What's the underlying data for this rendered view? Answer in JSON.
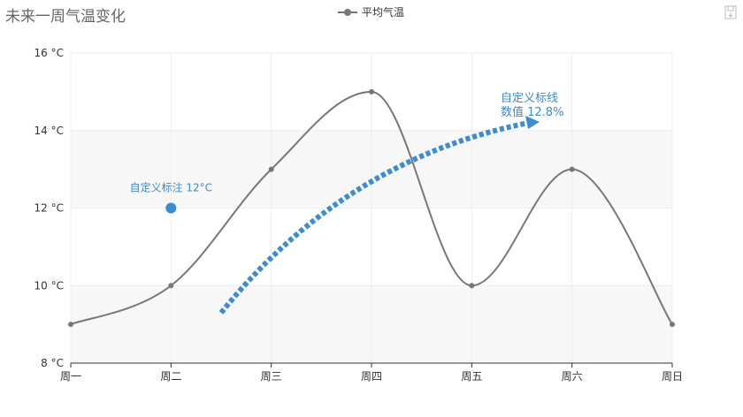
{
  "chart_data": {
    "type": "line",
    "title": "未来一周气温变化",
    "categories": [
      "周一",
      "周二",
      "周三",
      "周四",
      "周五",
      "周六",
      "周日"
    ],
    "series": [
      {
        "name": "平均气温",
        "values": [
          9,
          10,
          13,
          15,
          10,
          13,
          9
        ],
        "color": "#777777",
        "smooth": true
      }
    ],
    "ylim": [
      8,
      16
    ],
    "yticks": [
      8,
      10,
      12,
      14,
      16
    ],
    "yunit": "°C",
    "ytick_labels": [
      "8 °C",
      "10 °C",
      "12 °C",
      "14 °C",
      "16 °C"
    ],
    "legend_position": "top-center",
    "grid": true,
    "annotations": [
      {
        "type": "point",
        "x": "周二",
        "y": 12,
        "label": "自定义标注 12°C",
        "color": "#3d8bd1"
      },
      {
        "type": "arrow-line",
        "label_lines": [
          "自定义标线",
          "数值 12.8%"
        ],
        "color": "#3d8bd1",
        "style": "dashed"
      }
    ]
  },
  "toolbox": {
    "save_icon": "save-icon"
  }
}
